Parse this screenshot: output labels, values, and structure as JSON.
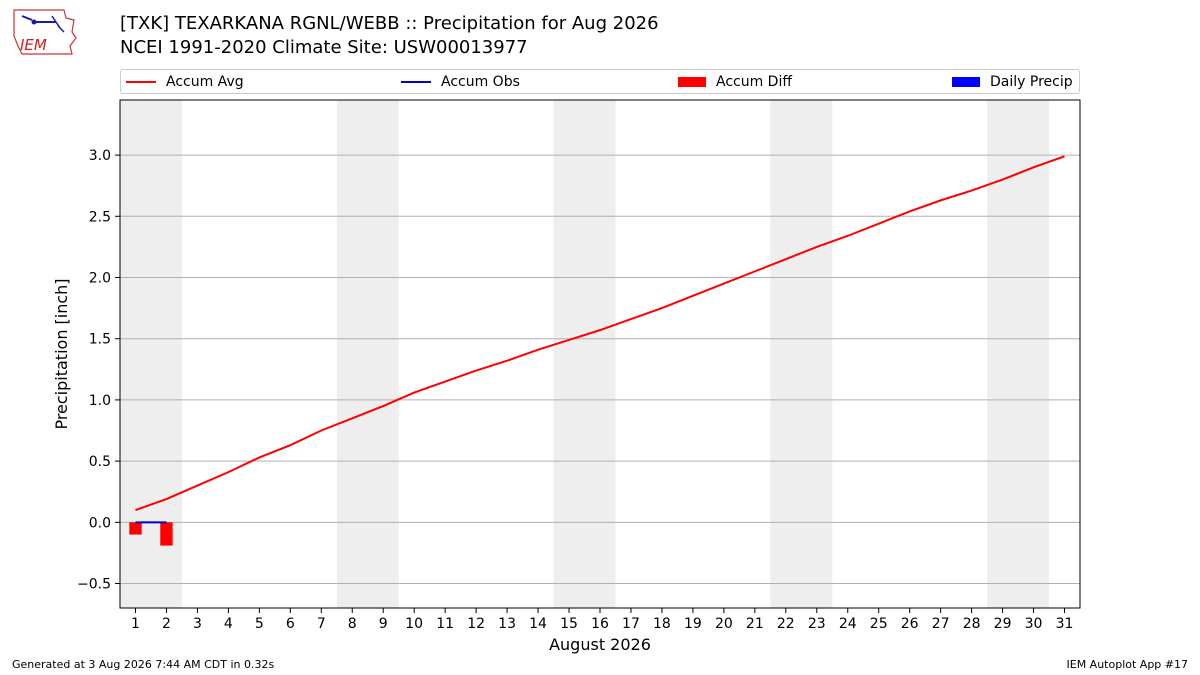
{
  "header": {
    "logo_text": "IEM",
    "title_line1": "[TXK] TEXARKANA RGNL/WEBB :: Precipitation for Aug 2026",
    "title_line2": "NCEI 1991-2020 Climate Site: USW00013977"
  },
  "footer": {
    "left": "Generated at 3 Aug 2026 7:44 AM CDT in 0.32s",
    "right": "IEM Autoplot App #17"
  },
  "colors": {
    "accum_avg": "#ff0000",
    "accum_obs": "#0000cc",
    "accum_diff": "#ff0000",
    "daily_precip": "#0000ff",
    "weekend_shade": "#eeeeee",
    "grid": "#b0b0b0"
  },
  "chart_data": {
    "type": "line",
    "xlabel": "August 2026",
    "ylabel": "Precipitation [inch]",
    "x": [
      1,
      2,
      3,
      4,
      5,
      6,
      7,
      8,
      9,
      10,
      11,
      12,
      13,
      14,
      15,
      16,
      17,
      18,
      19,
      20,
      21,
      22,
      23,
      24,
      25,
      26,
      27,
      28,
      29,
      30,
      31
    ],
    "xlim": [
      0.5,
      31.5
    ],
    "ylim": [
      -0.7,
      3.45
    ],
    "yticks": [
      -0.5,
      0.0,
      0.5,
      1.0,
      1.5,
      2.0,
      2.5,
      3.0
    ],
    "ytick_labels": [
      "−0.5",
      "0.0",
      "0.5",
      "1.0",
      "1.5",
      "2.0",
      "2.5",
      "3.0"
    ],
    "grid": "horizontal",
    "legend_position": "top, above plot",
    "weekend_spans": [
      [
        0.5,
        2.5
      ],
      [
        7.5,
        9.5
      ],
      [
        14.5,
        16.5
      ],
      [
        21.5,
        23.5
      ],
      [
        28.5,
        30.5
      ]
    ],
    "series": [
      {
        "name": "Accum Avg",
        "kind": "line",
        "x": [
          1,
          2,
          3,
          4,
          5,
          6,
          7,
          8,
          9,
          10,
          11,
          12,
          13,
          14,
          15,
          16,
          17,
          18,
          19,
          20,
          21,
          22,
          23,
          24,
          25,
          26,
          27,
          28,
          29,
          30,
          31
        ],
        "values": [
          0.1,
          0.19,
          0.3,
          0.41,
          0.53,
          0.63,
          0.75,
          0.85,
          0.95,
          1.06,
          1.15,
          1.24,
          1.32,
          1.41,
          1.49,
          1.57,
          1.66,
          1.75,
          1.85,
          1.95,
          2.05,
          2.15,
          2.25,
          2.34,
          2.44,
          2.54,
          2.63,
          2.71,
          2.8,
          2.9,
          2.99
        ]
      },
      {
        "name": "Accum Obs",
        "kind": "line",
        "x": [
          1,
          2
        ],
        "values": [
          0.0,
          0.0
        ]
      },
      {
        "name": "Accum Diff",
        "kind": "bar",
        "x": [
          1,
          2
        ],
        "values": [
          -0.1,
          -0.19
        ]
      },
      {
        "name": "Daily Precip",
        "kind": "bar",
        "x": [
          1,
          2
        ],
        "values": [
          0.0,
          0.0
        ]
      }
    ]
  }
}
